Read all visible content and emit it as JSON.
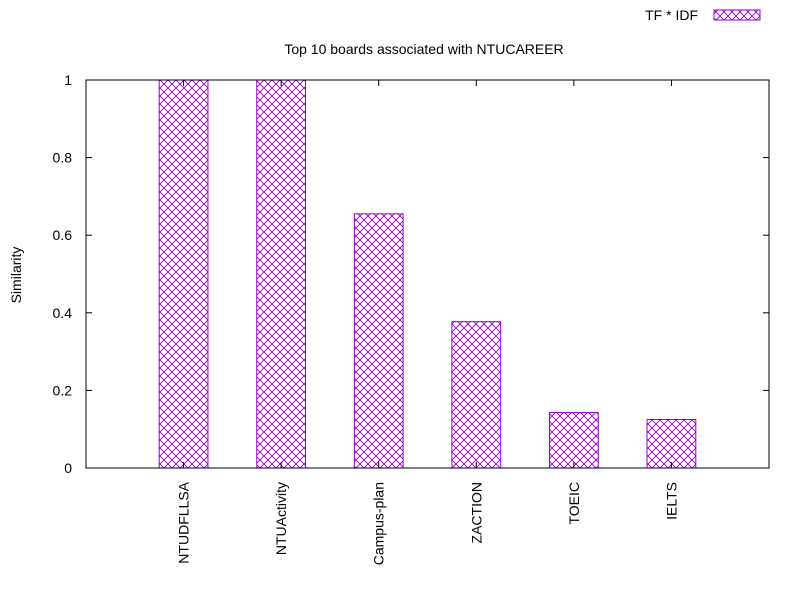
{
  "chart_data": {
    "type": "bar",
    "title": "Top 10 boards associated with NTUCAREER",
    "xlabel": "",
    "ylabel": "Similarity",
    "categories": [
      "NTUDFLLSA",
      "NTUActivity",
      "Campus-plan",
      "ZACTION",
      "TOEIC",
      "IELTS"
    ],
    "series": [
      {
        "name": "TF * IDF",
        "values": [
          1.0,
          1.0,
          0.655,
          0.377,
          0.143,
          0.125
        ]
      }
    ],
    "ylim": [
      0,
      1
    ],
    "yticks": [
      "0",
      "0.2",
      "0.4",
      "0.6",
      "0.8",
      "1"
    ],
    "grid": false,
    "legend_position": "top-right",
    "bar_color": "#9400d3",
    "fill_pattern": "crosshatch"
  }
}
